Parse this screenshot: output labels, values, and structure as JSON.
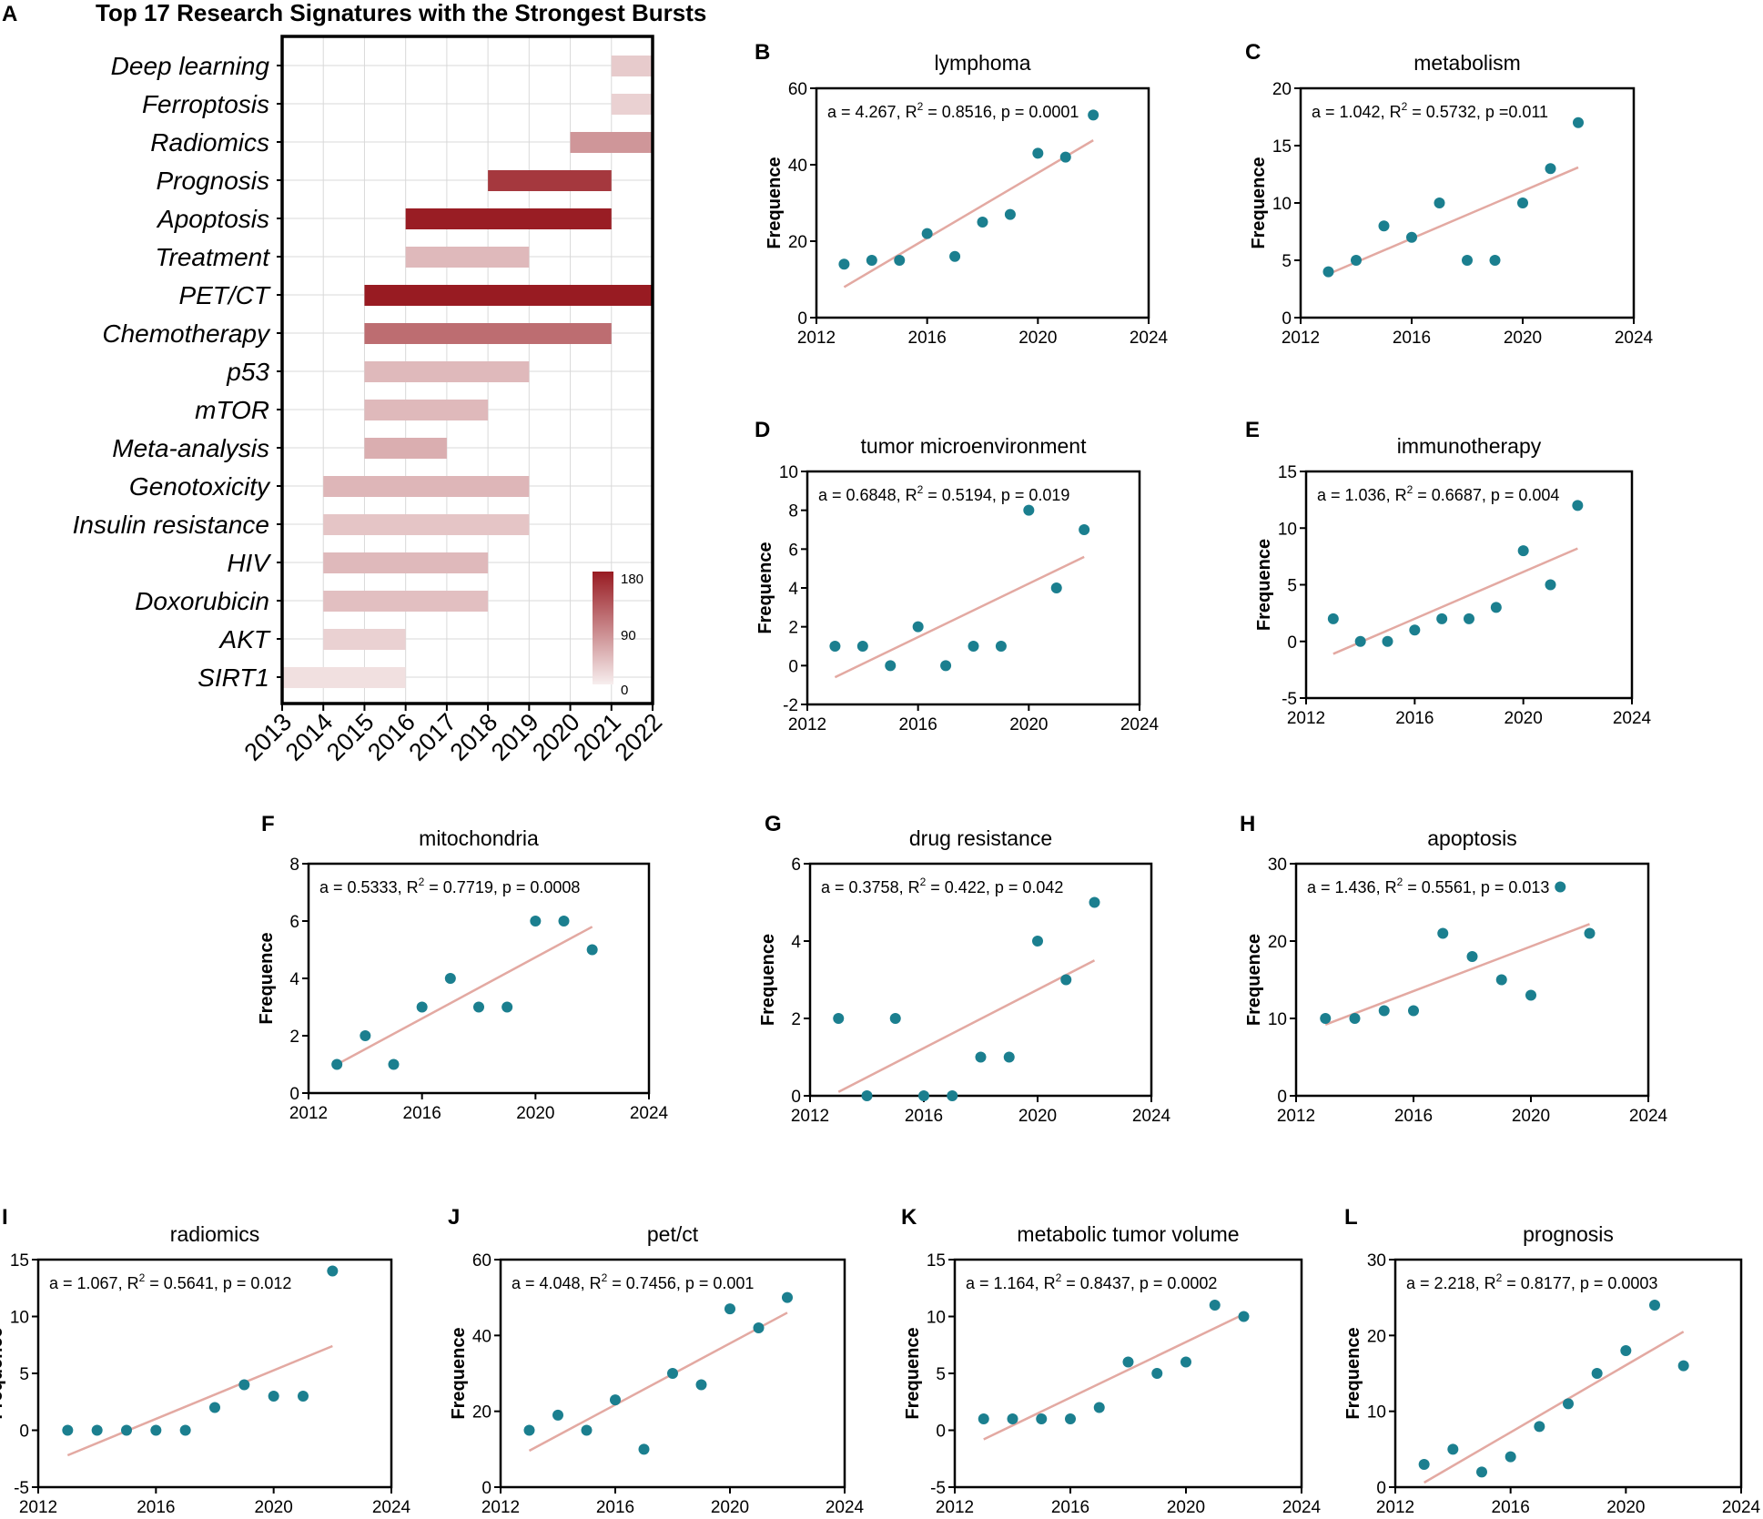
{
  "chart_data": [
    {
      "type": "gantt",
      "panel": "A",
      "title": "Top 17 Research Signatures with the Strongest Bursts",
      "x_ticks": [
        "2013",
        "2014",
        "2015",
        "2016",
        "2017",
        "2018",
        "2019",
        "2020",
        "2021",
        "2022"
      ],
      "xlim": [
        2013,
        2022
      ],
      "color_scale": {
        "min": 0,
        "mid": 90,
        "max": 180,
        "ticks": [
          "180",
          "90",
          "0"
        ],
        "low_color": "#f7eeee",
        "high_color": "#981b22"
      },
      "bars": [
        {
          "label": "Deep learning",
          "start": 2021,
          "end": 2022,
          "strength": 30
        },
        {
          "label": "Ferroptosis",
          "start": 2021,
          "end": 2022,
          "strength": 25
        },
        {
          "label": "Radiomics",
          "start": 2020,
          "end": 2022,
          "strength": 75
        },
        {
          "label": "Prognosis",
          "start": 2018,
          "end": 2021,
          "strength": 155
        },
        {
          "label": "Apoptosis",
          "start": 2016,
          "end": 2021,
          "strength": 178
        },
        {
          "label": "Treatment",
          "start": 2016,
          "end": 2019,
          "strength": 45
        },
        {
          "label": "PET/CT",
          "start": 2015,
          "end": 2022,
          "strength": 180
        },
        {
          "label": "Chemotherapy",
          "start": 2015,
          "end": 2021,
          "strength": 110
        },
        {
          "label": "p53",
          "start": 2015,
          "end": 2019,
          "strength": 45
        },
        {
          "label": "mTOR",
          "start": 2015,
          "end": 2018,
          "strength": 45
        },
        {
          "label": "Meta-analysis",
          "start": 2015,
          "end": 2017,
          "strength": 55
        },
        {
          "label": "Genotoxicity",
          "start": 2014,
          "end": 2019,
          "strength": 48
        },
        {
          "label": "Insulin resistance",
          "start": 2014,
          "end": 2019,
          "strength": 35
        },
        {
          "label": "HIV",
          "start": 2014,
          "end": 2018,
          "strength": 45
        },
        {
          "label": "Doxorubicin",
          "start": 2014,
          "end": 2018,
          "strength": 40
        },
        {
          "label": "AKT",
          "start": 2014,
          "end": 2016,
          "strength": 25
        },
        {
          "label": "SIRT1",
          "start": 2013,
          "end": 2016,
          "strength": 12
        }
      ]
    },
    {
      "type": "scatter",
      "panel": "B",
      "title": "lymphoma",
      "ylabel": "Frequence",
      "xlim": [
        2012,
        2024
      ],
      "ylim": [
        0,
        60
      ],
      "x_ticks": [
        2012,
        2016,
        2020,
        2024
      ],
      "y_ticks": [
        0,
        20,
        40,
        60
      ],
      "x": [
        2013,
        2014,
        2015,
        2016,
        2017,
        2018,
        2019,
        2020,
        2021,
        2022
      ],
      "y": [
        14,
        15,
        15,
        22,
        16,
        25,
        27,
        43,
        42,
        53
      ],
      "fit": [
        8,
        46.4
      ],
      "annotation": {
        "a": "a = 4.267, R",
        "r2": "2",
        "rest": " = 0.8516, p = 0.0001"
      }
    },
    {
      "type": "scatter",
      "panel": "C",
      "title": "metabolism",
      "ylabel": "Frequence",
      "xlim": [
        2012,
        2024
      ],
      "ylim": [
        0,
        20
      ],
      "x_ticks": [
        2012,
        2016,
        2020,
        2024
      ],
      "y_ticks": [
        0,
        5,
        10,
        15,
        20
      ],
      "x": [
        2013,
        2014,
        2015,
        2016,
        2017,
        2018,
        2019,
        2020,
        2021,
        2022
      ],
      "y": [
        4,
        5,
        8,
        7,
        10,
        5,
        5,
        10,
        13,
        17
      ],
      "fit": [
        3.8,
        13.1
      ],
      "annotation": {
        "a": "a = 1.042, R",
        "r2": "2",
        "rest": " = 0.5732, p =0.011"
      }
    },
    {
      "type": "scatter",
      "panel": "D",
      "title": "tumor microenvironment",
      "ylabel": "Frequence",
      "xlim": [
        2012,
        2024
      ],
      "ylim": [
        -2,
        10
      ],
      "x_ticks": [
        2012,
        2016,
        2020,
        2024
      ],
      "y_ticks": [
        -2,
        0,
        2,
        4,
        6,
        8,
        10
      ],
      "x": [
        2013,
        2014,
        2015,
        2016,
        2017,
        2018,
        2019,
        2020,
        2021,
        2022
      ],
      "y": [
        1,
        1,
        0,
        2,
        0,
        1,
        1,
        8,
        4,
        7
      ],
      "fit": [
        -0.6,
        5.6
      ],
      "annotation": {
        "a": "a = 0.6848, R",
        "r2": "2",
        "rest": " = 0.5194, p = 0.019"
      }
    },
    {
      "type": "scatter",
      "panel": "E",
      "title": "immunotherapy",
      "ylabel": "Frequence",
      "xlim": [
        2012,
        2024
      ],
      "ylim": [
        -5,
        15
      ],
      "x_ticks": [
        2012,
        2016,
        2020,
        2024
      ],
      "y_ticks": [
        -5,
        0,
        5,
        10,
        15
      ],
      "x": [
        2013,
        2014,
        2015,
        2016,
        2017,
        2018,
        2019,
        2020,
        2021,
        2022
      ],
      "y": [
        2,
        0,
        0,
        1,
        2,
        2,
        3,
        8,
        5,
        12
      ],
      "fit": [
        -1.1,
        8.2
      ],
      "annotation": {
        "a": "a = 1.036, R",
        "r2": "2",
        "rest": " = 0.6687, p = 0.004"
      }
    },
    {
      "type": "scatter",
      "panel": "F",
      "title": "mitochondria",
      "ylabel": "Frequence",
      "xlim": [
        2012,
        2024
      ],
      "ylim": [
        0,
        8
      ],
      "x_ticks": [
        2012,
        2016,
        2020,
        2024
      ],
      "y_ticks": [
        0,
        2,
        4,
        6,
        8
      ],
      "x": [
        2013,
        2014,
        2015,
        2016,
        2017,
        2018,
        2019,
        2020,
        2021,
        2022
      ],
      "y": [
        1,
        2,
        1,
        3,
        4,
        3,
        3,
        6,
        6,
        5
      ],
      "fit": [
        1,
        5.8
      ],
      "annotation": {
        "a": "a = 0.5333, R",
        "r2": "2",
        "rest": " = 0.7719, p = 0.0008"
      }
    },
    {
      "type": "scatter",
      "panel": "G",
      "title": "drug resistance",
      "ylabel": "Frequence",
      "xlim": [
        2012,
        2024
      ],
      "ylim": [
        0,
        6
      ],
      "x_ticks": [
        2012,
        2016,
        2020,
        2024
      ],
      "y_ticks": [
        0,
        2,
        4,
        6
      ],
      "x": [
        2013,
        2014,
        2015,
        2016,
        2017,
        2018,
        2019,
        2020,
        2021,
        2022
      ],
      "y": [
        2,
        0,
        2,
        0,
        0,
        1,
        1,
        4,
        3,
        5
      ],
      "fit": [
        0.1,
        3.5
      ],
      "annotation": {
        "a": "a = 0.3758, R",
        "r2": "2",
        "rest": " = 0.422, p = 0.042"
      }
    },
    {
      "type": "scatter",
      "panel": "H",
      "title": "apoptosis",
      "ylabel": "Frequence",
      "xlim": [
        2012,
        2024
      ],
      "ylim": [
        0,
        30
      ],
      "x_ticks": [
        2012,
        2016,
        2020,
        2024
      ],
      "y_ticks": [
        0,
        10,
        20,
        30
      ],
      "x": [
        2013,
        2014,
        2015,
        2016,
        2017,
        2018,
        2019,
        2020,
        2021,
        2022
      ],
      "y": [
        10,
        10,
        11,
        11,
        21,
        18,
        15,
        13,
        27,
        21
      ],
      "fit": [
        9.2,
        22.2
      ],
      "annotation": {
        "a": "a = 1.436, R",
        "r2": "2",
        "rest": " = 0.5561, p = 0.013"
      }
    },
    {
      "type": "scatter",
      "panel": "I",
      "title": "radiomics",
      "ylabel": "Frequence",
      "xlim": [
        2012,
        2024
      ],
      "ylim": [
        -5,
        15
      ],
      "x_ticks": [
        2012,
        2016,
        2020,
        2024
      ],
      "y_ticks": [
        -5,
        0,
        5,
        10,
        15
      ],
      "x": [
        2013,
        2014,
        2015,
        2016,
        2017,
        2018,
        2019,
        2020,
        2021,
        2022
      ],
      "y": [
        0,
        0,
        0,
        0,
        0,
        2,
        4,
        3,
        3,
        14
      ],
      "fit": [
        -2.2,
        7.4
      ],
      "annotation": {
        "a": "a = 1.067, R",
        "r2": "2",
        "rest": " = 0.5641, p = 0.012"
      }
    },
    {
      "type": "scatter",
      "panel": "J",
      "title": "pet/ct",
      "ylabel": "Frequence",
      "xlim": [
        2012,
        2024
      ],
      "ylim": [
        0,
        60
      ],
      "x_ticks": [
        2012,
        2016,
        2020,
        2024
      ],
      "y_ticks": [
        0,
        20,
        40,
        60
      ],
      "x": [
        2013,
        2014,
        2015,
        2016,
        2017,
        2018,
        2019,
        2020,
        2021,
        2022
      ],
      "y": [
        15,
        19,
        15,
        23,
        10,
        30,
        27,
        47,
        42,
        50
      ],
      "fit": [
        9.6,
        46
      ],
      "annotation": {
        "a": "a = 4.048, R",
        "r2": "2",
        "rest": " = 0.7456, p = 0.001"
      }
    },
    {
      "type": "scatter",
      "panel": "K",
      "title": "metabolic tumor volume",
      "ylabel": "Frequence",
      "xlim": [
        2012,
        2024
      ],
      "ylim": [
        -5,
        15
      ],
      "x_ticks": [
        2012,
        2016,
        2020,
        2024
      ],
      "y_ticks": [
        -5,
        0,
        5,
        10,
        15
      ],
      "x": [
        2013,
        2014,
        2015,
        2016,
        2017,
        2018,
        2019,
        2020,
        2021,
        2022
      ],
      "y": [
        1,
        1,
        1,
        1,
        2,
        6,
        5,
        6,
        11,
        10
      ],
      "fit": [
        -0.8,
        10.2
      ],
      "annotation": {
        "a": "a = 1.164, R",
        "r2": "2",
        "rest": " = 0.8437, p = 0.0002"
      }
    },
    {
      "type": "scatter",
      "panel": "L",
      "title": "prognosis",
      "ylabel": "Frequence",
      "xlim": [
        2012,
        2024
      ],
      "ylim": [
        0,
        30
      ],
      "x_ticks": [
        2012,
        2016,
        2020,
        2024
      ],
      "y_ticks": [
        0,
        10,
        20,
        30
      ],
      "x": [
        2013,
        2014,
        2015,
        2016,
        2017,
        2018,
        2019,
        2020,
        2021,
        2022
      ],
      "y": [
        3,
        5,
        2,
        4,
        8,
        11,
        15,
        18,
        24,
        16
      ],
      "fit": [
        0.6,
        20.5
      ],
      "annotation": {
        "a": "a = 2.218, R",
        "r2": "2",
        "rest": " = 0.8177, p = 0.0003"
      }
    }
  ],
  "colors": {
    "point": "#1b7f8f",
    "fit_line": "#e3a9a2",
    "grid": "#d9d9d9",
    "axis": "#000000"
  }
}
